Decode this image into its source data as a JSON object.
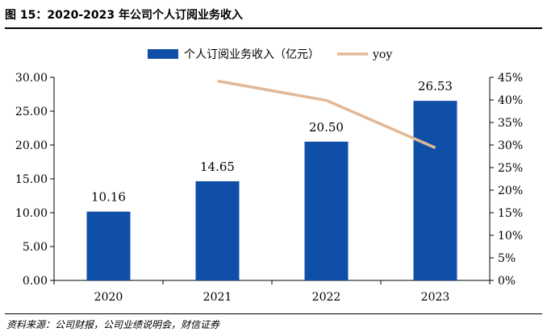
{
  "title": "图 15：2020-2023 年公司个人订阅业务收入",
  "source": "资料来源：公司财报，公司业绩说明会，财信证券",
  "chart_data": {
    "type": "bar",
    "categories": [
      "2020",
      "2021",
      "2022",
      "2023"
    ],
    "series": [
      {
        "name": "个人订阅业务收入（亿元）",
        "type": "bar",
        "axis": "left",
        "color": "#0f4fa8",
        "values": [
          10.16,
          14.65,
          20.5,
          26.53
        ],
        "data_labels": [
          "10.16",
          "14.65",
          "20.50",
          "26.53"
        ]
      },
      {
        "name": "yoy",
        "type": "line",
        "axis": "right",
        "color": "#e2b896",
        "values": [
          null,
          0.442,
          0.399,
          0.294
        ]
      }
    ],
    "ylim": [
      0,
      30
    ],
    "yticks": [
      "0.00",
      "5.00",
      "10.00",
      "15.00",
      "20.00",
      "25.00",
      "30.00"
    ],
    "y2lim": [
      0,
      0.45
    ],
    "y2ticks": [
      "0%",
      "5%",
      "10%",
      "15%",
      "20%",
      "25%",
      "30%",
      "35%",
      "40%",
      "45%"
    ],
    "legend": "top-center",
    "grid": false
  }
}
